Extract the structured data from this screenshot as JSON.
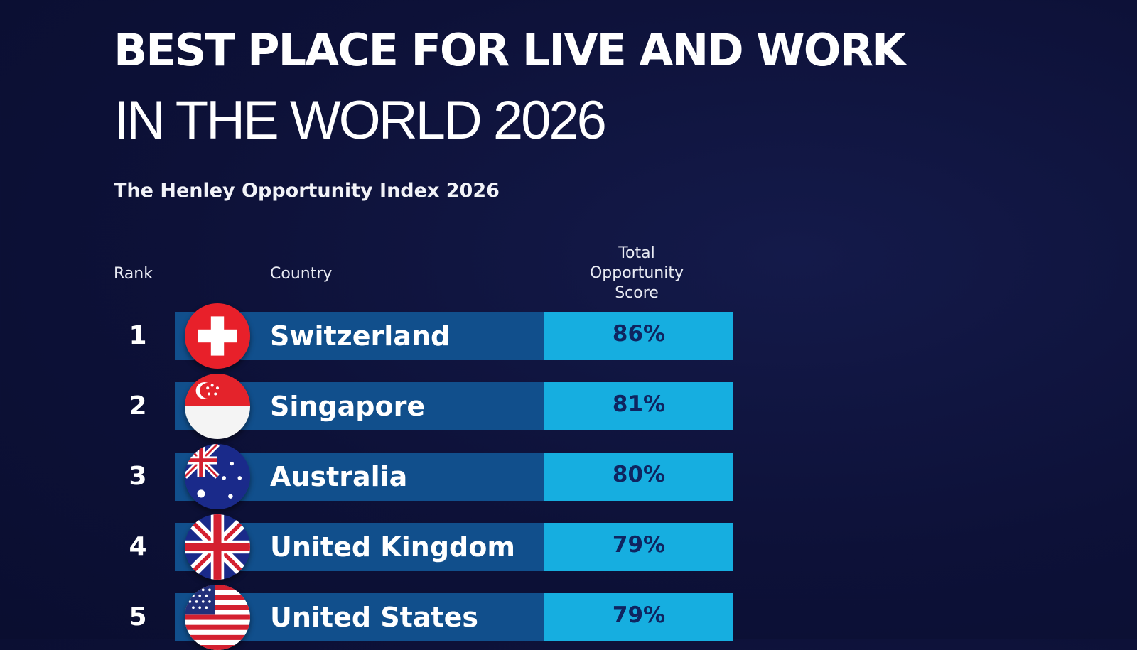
{
  "title": {
    "line1": "BEST PLACE FOR LIVE AND WORK",
    "line2": "IN THE WORLD 2026"
  },
  "subtitle": "The Henley Opportunity Index 2026",
  "columns": {
    "rank": "Rank",
    "country": "Country",
    "score_lines": [
      "Total",
      "Opportunity",
      "Score"
    ]
  },
  "chart_data": {
    "type": "table",
    "title": "BEST PLACE FOR LIVE AND WORK IN THE WORLD 2026",
    "subtitle": "The Henley Opportunity Index 2026",
    "columns": [
      "Rank",
      "Country",
      "Total Opportunity Score"
    ],
    "rows": [
      {
        "rank": "1",
        "country": "Switzerland",
        "score": "86%",
        "value": 86,
        "flag_icon": "switzerland-flag-icon"
      },
      {
        "rank": "2",
        "country": "Singapore",
        "score": "81%",
        "value": 81,
        "flag_icon": "singapore-flag-icon"
      },
      {
        "rank": "3",
        "country": "Australia",
        "score": "80%",
        "value": 80,
        "flag_icon": "australia-flag-icon"
      },
      {
        "rank": "4",
        "country": "United Kingdom",
        "score": "79%",
        "value": 79,
        "flag_icon": "united-kingdom-flag-icon"
      },
      {
        "rank": "5",
        "country": "United States",
        "score": "79%",
        "value": 79,
        "flag_icon": "united-states-flag-icon"
      }
    ]
  },
  "colors": {
    "background": "#0d1138",
    "country_bar": "#114f8c",
    "score_bar": "#16aee0",
    "score_text": "#0f2460"
  }
}
